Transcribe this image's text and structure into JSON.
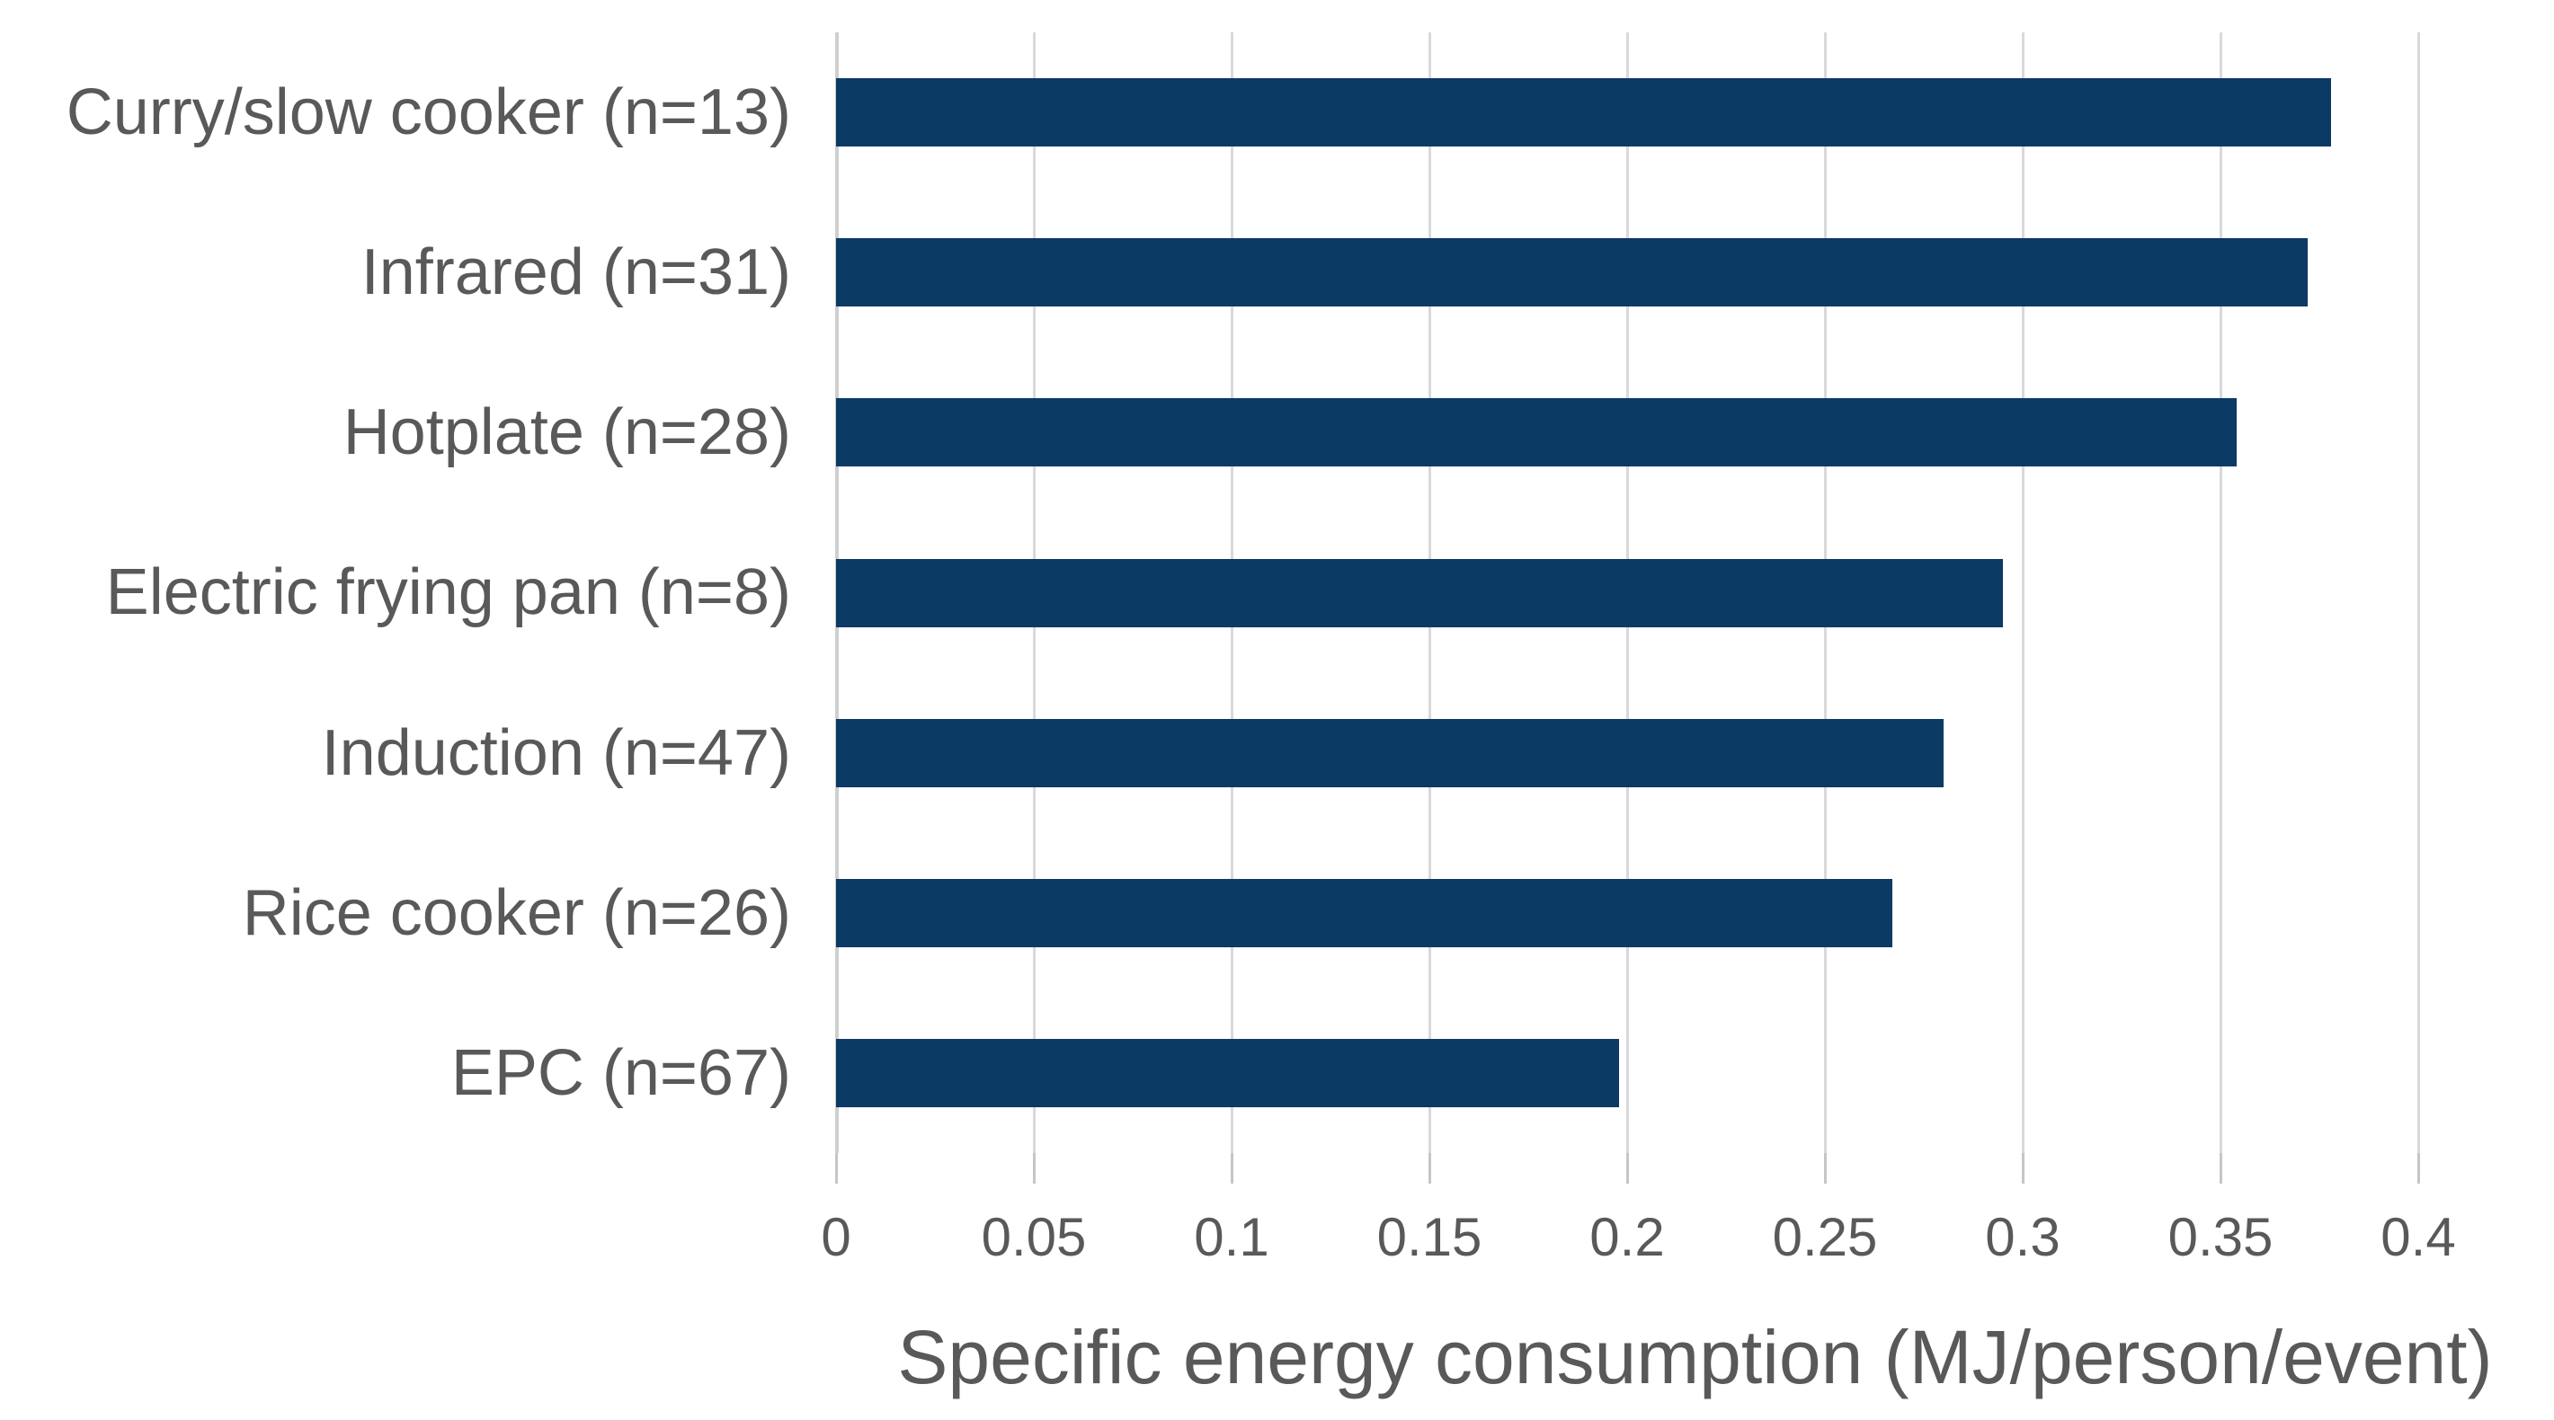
{
  "chart_data": {
    "type": "bar",
    "orientation": "horizontal",
    "title": "",
    "xlabel": "Specific energy consumption (MJ/person/event)",
    "ylabel": "",
    "categories": [
      "Curry/slow cooker (n=13)",
      "Infrared (n=31)",
      "Hotplate (n=28)",
      "Electric frying pan (n=8)",
      "Induction (n=47)",
      "Rice cooker (n=26)",
      "EPC (n=67)"
    ],
    "values": [
      0.378,
      0.372,
      0.354,
      0.295,
      0.28,
      0.267,
      0.198
    ],
    "xlim": [
      0,
      0.4
    ],
    "xticks": [
      "0",
      "0.05",
      "0.1",
      "0.15",
      "0.2",
      "0.25",
      "0.3",
      "0.35",
      "0.4"
    ],
    "grid": "vertical",
    "legend": "none",
    "bar_color": "#0b3a64",
    "text_color": "#595959",
    "gridline_color": "#d9d9d9"
  }
}
